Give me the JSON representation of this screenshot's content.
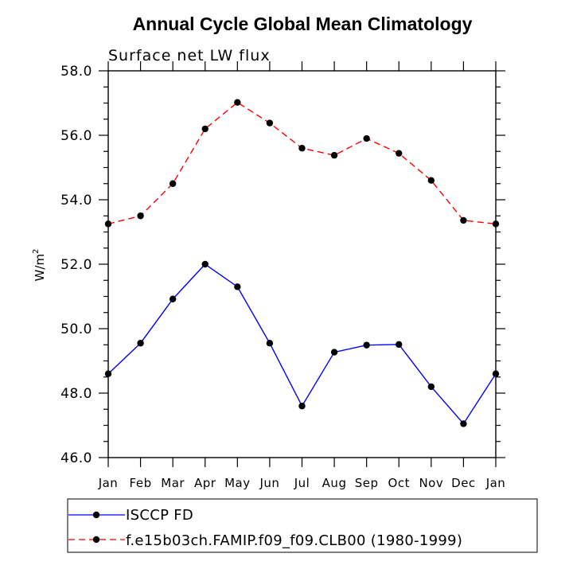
{
  "chart_data": {
    "type": "line",
    "title": "Annual Cycle Global Mean Climatology",
    "subtitle": "Surface net LW flux",
    "ylabel": "W/m",
    "ylabel_superscript": "2",
    "xlabel": "",
    "categories": [
      "Jan",
      "Feb",
      "Mar",
      "Apr",
      "May",
      "Jun",
      "Jul",
      "Aug",
      "Sep",
      "Oct",
      "Nov",
      "Dec",
      "Jan"
    ],
    "ylim": [
      46.0,
      58.0
    ],
    "yticks": [
      46.0,
      48.0,
      50.0,
      52.0,
      54.0,
      56.0,
      58.0
    ],
    "ytick_labels": [
      "46.0",
      "48.0",
      "50.0",
      "52.0",
      "54.0",
      "56.0",
      "58.0"
    ],
    "grid": false,
    "legend_position": "bottom",
    "series": [
      {
        "name": "ISCCP FD",
        "color": "#0000ff",
        "dash": "solid",
        "values": [
          48.6,
          49.55,
          50.92,
          52.0,
          51.3,
          49.55,
          47.6,
          49.27,
          49.49,
          49.51,
          48.2,
          47.05,
          48.6
        ]
      },
      {
        "name": "f.e15b03ch.FAMIP.f09_f09.CLB00 (1980-1999)",
        "color": "#ff0000",
        "dash": "dashed",
        "values": [
          53.25,
          53.5,
          54.5,
          56.2,
          57.02,
          56.38,
          55.6,
          55.38,
          55.9,
          55.44,
          54.6,
          53.36,
          53.25
        ]
      }
    ]
  }
}
